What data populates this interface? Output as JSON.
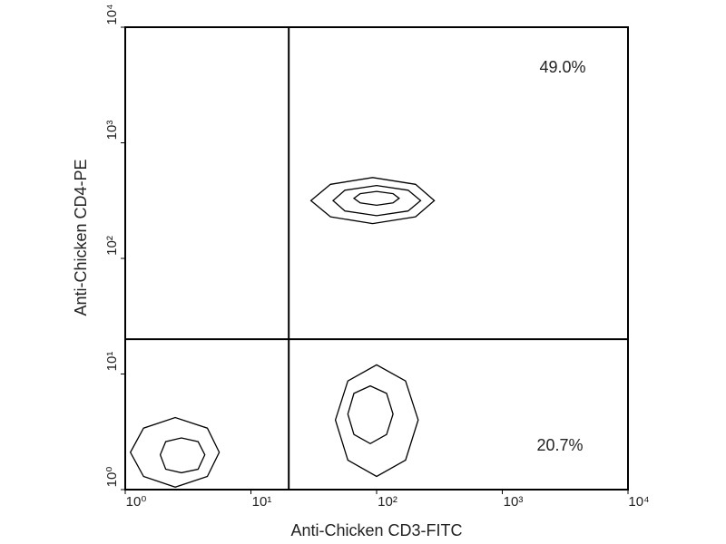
{
  "chart_data": {
    "type": "contour",
    "x_label": "Anti-Chicken CD3-FITC",
    "y_label": "Anti-Chicken CD4-PE",
    "log_x": true,
    "log_y": true,
    "xlim": [
      1,
      10000
    ],
    "ylim": [
      1,
      10000
    ],
    "xticks": [
      {
        "value": 1,
        "label": "10⁰"
      },
      {
        "value": 10,
        "label": "10¹"
      },
      {
        "value": 100,
        "label": "10²"
      },
      {
        "value": 1000,
        "label": "10³"
      },
      {
        "value": 10000,
        "label": "10⁴"
      }
    ],
    "yticks": [
      {
        "value": 1,
        "label": "10⁰"
      },
      {
        "value": 10,
        "label": "10¹"
      },
      {
        "value": 100,
        "label": "10²"
      },
      {
        "value": 1000,
        "label": "10³"
      },
      {
        "value": 10000,
        "label": "10⁴"
      }
    ],
    "gate_x": 20,
    "gate_y": 20,
    "annotations": [
      "49.0%",
      "20.7%"
    ],
    "color": "#000000",
    "contours": [
      {
        "x": [
          288,
          204,
          93,
          43,
          30,
          43,
          93,
          204
        ],
        "y": [
          316,
          437,
          501,
          437,
          316,
          229,
          200,
          229
        ]
      },
      {
        "x": [
          224,
          178,
          100,
          56,
          45,
          56,
          100,
          178
        ],
        "y": [
          316,
          389,
          427,
          389,
          316,
          257,
          234,
          257
        ]
      },
      {
        "x": [
          151,
          135,
          100,
          74,
          66,
          74,
          100,
          135
        ],
        "y": [
          331,
          363,
          380,
          363,
          331,
          302,
          288,
          302
        ]
      },
      {
        "x": [
          214,
          170,
          100,
          59,
          47,
          59,
          100,
          170
        ],
        "y": [
          4.0,
          8.7,
          12.0,
          8.7,
          4.0,
          1.8,
          1.3,
          1.8
        ]
      },
      {
        "x": [
          135,
          120,
          89,
          66,
          59,
          66,
          89,
          120
        ],
        "y": [
          4.5,
          6.8,
          7.9,
          6.8,
          4.5,
          3.0,
          2.5,
          3.0
        ]
      },
      {
        "x": [
          5.6,
          4.5,
          2.5,
          1.4,
          1.1,
          1.4,
          2.5,
          4.5
        ],
        "y": [
          2.1,
          3.4,
          4.2,
          3.4,
          2.1,
          1.3,
          1.05,
          1.3
        ]
      },
      {
        "x": [
          4.3,
          3.8,
          2.8,
          2.1,
          1.9,
          2.1,
          2.8,
          3.8
        ],
        "y": [
          2.0,
          2.6,
          2.8,
          2.6,
          2.0,
          1.5,
          1.4,
          1.5
        ]
      }
    ]
  }
}
